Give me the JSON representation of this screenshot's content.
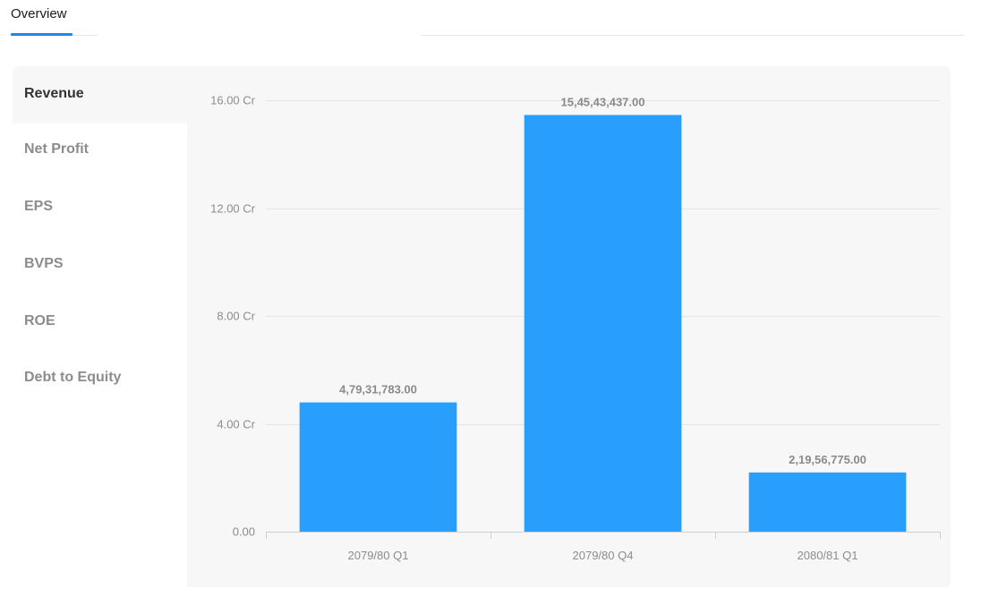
{
  "tabs": [
    {
      "label": "Overview",
      "active": true
    }
  ],
  "sidebar": {
    "items": [
      {
        "label": "Revenue",
        "active": true
      },
      {
        "label": "Net Profit",
        "active": false
      },
      {
        "label": "EPS",
        "active": false
      },
      {
        "label": "BVPS",
        "active": false
      },
      {
        "label": "ROE",
        "active": false
      },
      {
        "label": "Debt to Equity",
        "active": false
      }
    ]
  },
  "colors": {
    "bar": "#289efd",
    "accent": "#1e88e5",
    "grid": "#e4e4e4"
  },
  "chart_data": {
    "type": "bar",
    "categories": [
      "2079/80 Q1",
      "2079/80 Q4",
      "2080/81 Q1"
    ],
    "values": [
      47931783,
      154543437,
      21956775
    ],
    "data_labels": [
      "4,79,31,783.00",
      "15,45,43,437.00",
      "2,19,56,775.00"
    ],
    "yticks": [
      0,
      40000000,
      80000000,
      120000000,
      160000000
    ],
    "ytick_labels": [
      "0.00",
      "4.00 Cr",
      "8.00 Cr",
      "12.00 Cr",
      "16.00 Cr"
    ],
    "ylim": [
      0,
      160000000
    ],
    "grid": true,
    "title": "",
    "xlabel": "",
    "ylabel": ""
  }
}
